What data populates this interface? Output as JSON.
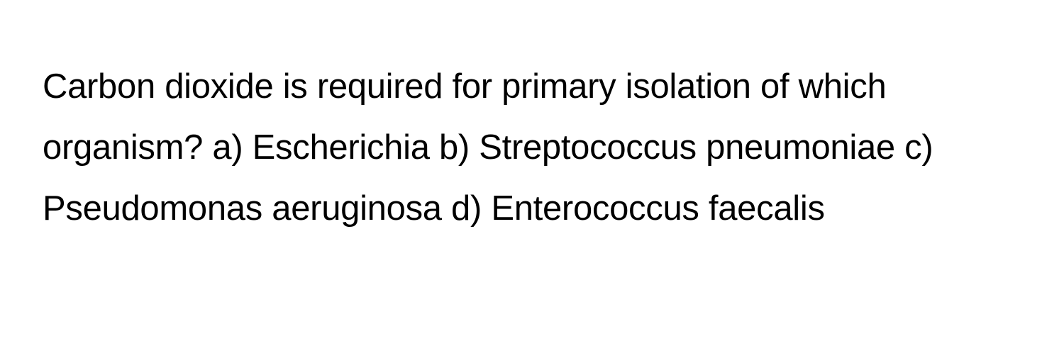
{
  "question": {
    "text": "Carbon dioxide is required for primary isolation of which organism? a) Escherichia b) Streptococcus pneumoniae c) Pseudomonas aeruginosa d) Enterococcus faecalis",
    "text_color": "#000000",
    "background_color": "#ffffff",
    "font_size": 49,
    "line_height": 1.75
  }
}
